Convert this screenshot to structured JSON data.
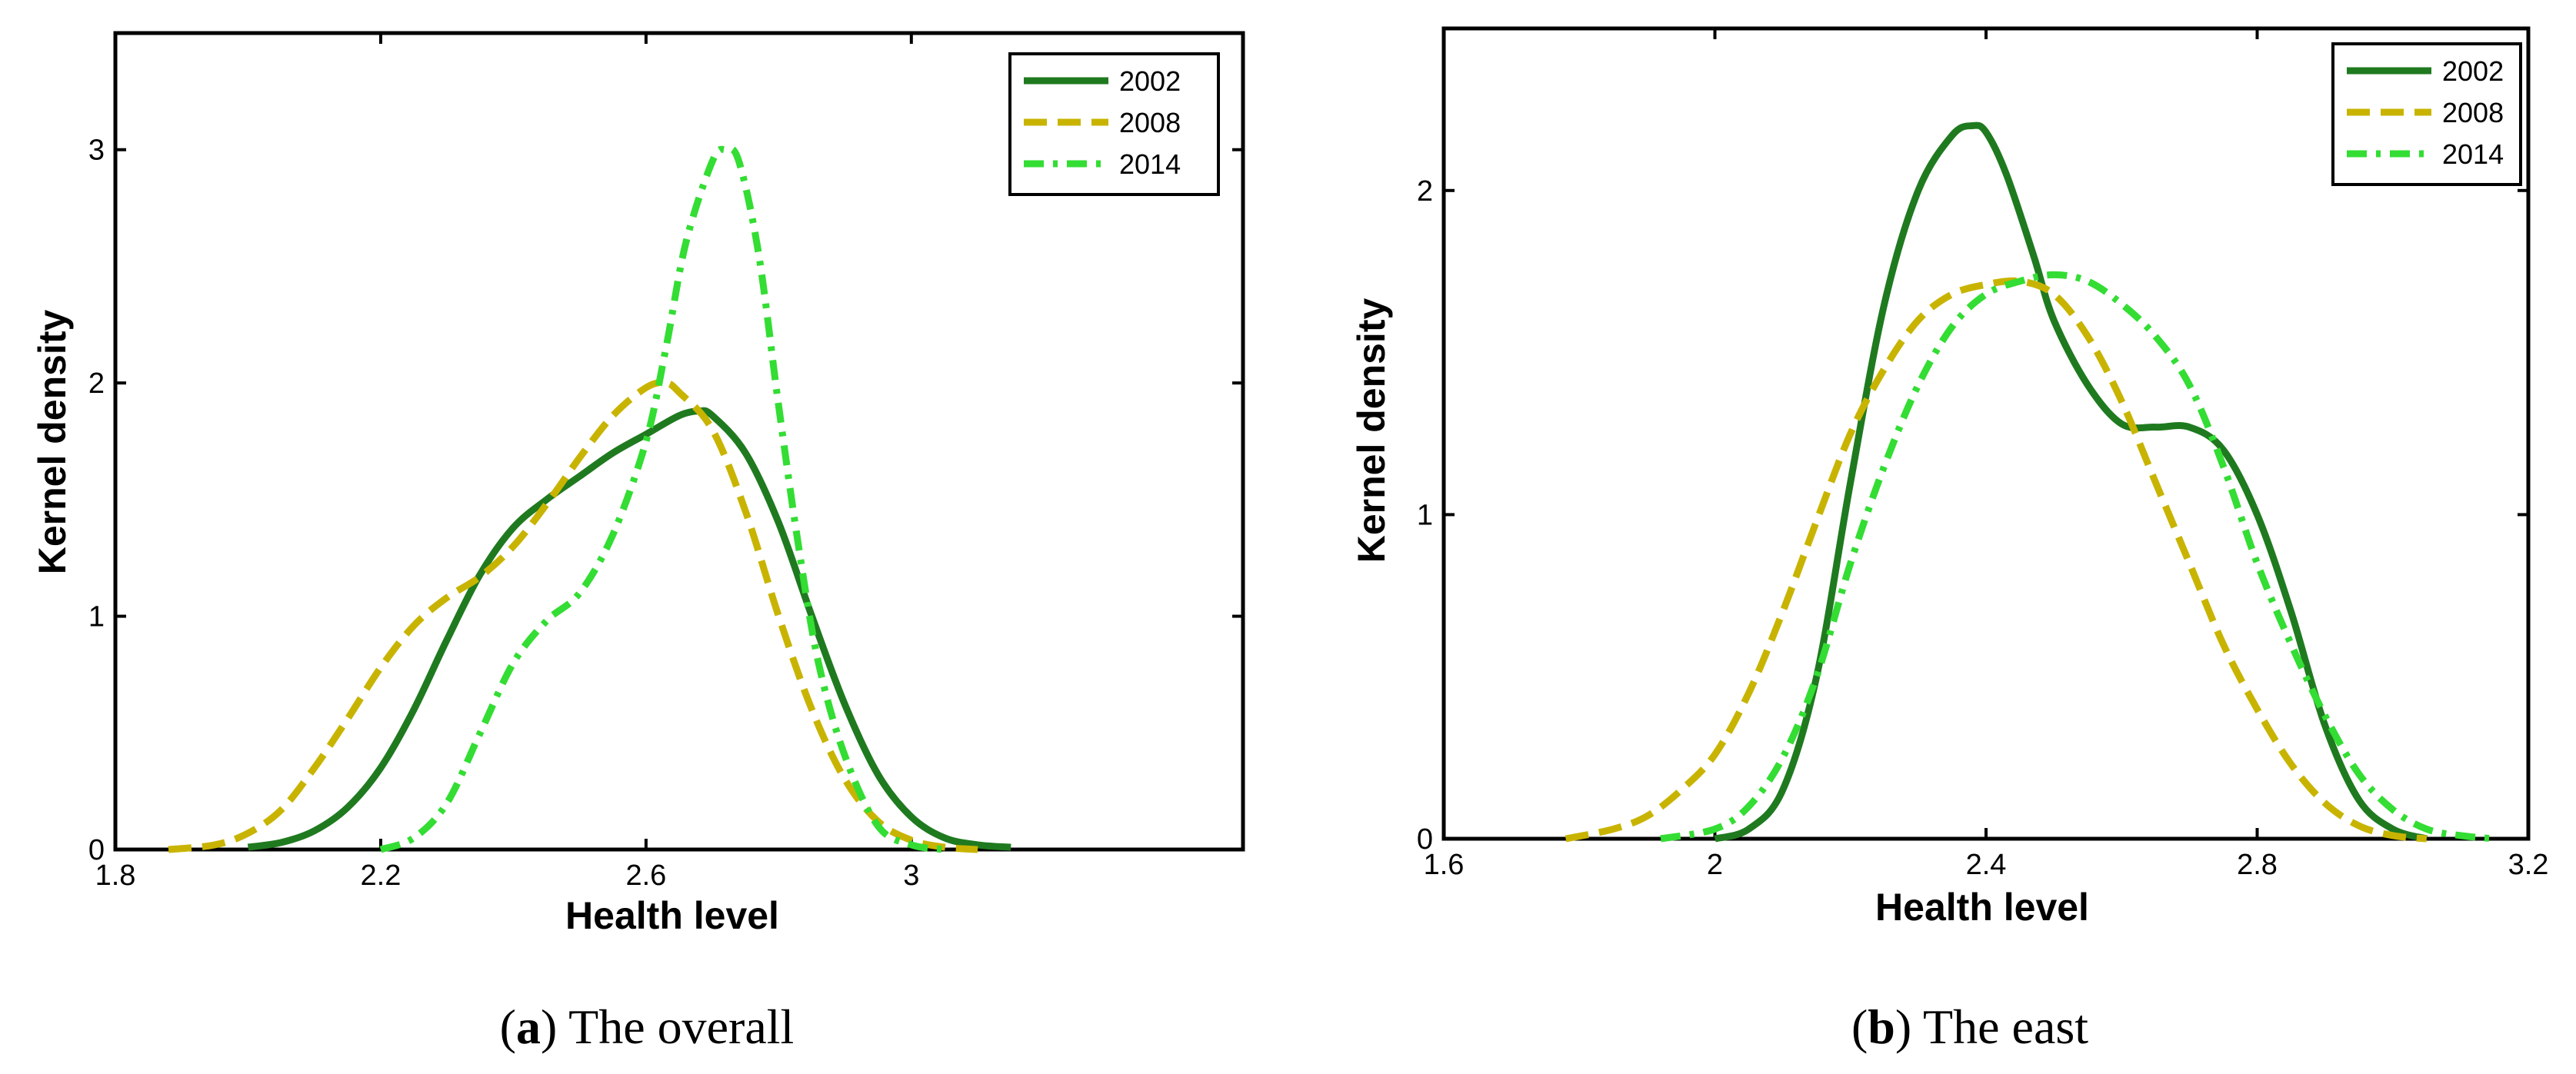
{
  "chart_data": [
    {
      "type": "line",
      "caption": {
        "letter": "a",
        "text": " The overall"
      },
      "title": "",
      "xlabel": "Health level",
      "ylabel": "Kernel density",
      "xlim": [
        1.8,
        3.5
      ],
      "ylim": [
        0,
        3.5
      ],
      "xticks": [
        1.8,
        2.2,
        2.6,
        3
      ],
      "xtick_labels": [
        "1.8",
        "2.2",
        "2.6",
        "3"
      ],
      "yticks": [
        0,
        1,
        2,
        3
      ],
      "ytick_labels": [
        "0",
        "1",
        "2",
        "3"
      ],
      "legend_position": "top-right",
      "series": [
        {
          "name": "2002",
          "color": "#1f7a1f",
          "style": "solid",
          "x": [
            2.0,
            2.05,
            2.1,
            2.15,
            2.2,
            2.25,
            2.3,
            2.35,
            2.4,
            2.45,
            2.5,
            2.55,
            2.6,
            2.65,
            2.68,
            2.7,
            2.75,
            2.8,
            2.85,
            2.9,
            2.95,
            3.0,
            3.05,
            3.1,
            3.15
          ],
          "y": [
            0.01,
            0.03,
            0.08,
            0.18,
            0.35,
            0.6,
            0.9,
            1.18,
            1.38,
            1.5,
            1.6,
            1.7,
            1.78,
            1.86,
            1.88,
            1.86,
            1.7,
            1.4,
            1.0,
            0.62,
            0.32,
            0.14,
            0.05,
            0.02,
            0.01
          ]
        },
        {
          "name": "2008",
          "color": "#c8b400",
          "style": "dashed",
          "x": [
            1.88,
            1.95,
            2.0,
            2.05,
            2.1,
            2.15,
            2.2,
            2.25,
            2.3,
            2.35,
            2.4,
            2.45,
            2.5,
            2.55,
            2.6,
            2.63,
            2.65,
            2.7,
            2.75,
            2.8,
            2.85,
            2.9,
            2.95,
            3.0,
            3.05,
            3.1
          ],
          "y": [
            0.0,
            0.02,
            0.07,
            0.17,
            0.35,
            0.56,
            0.78,
            0.96,
            1.08,
            1.17,
            1.3,
            1.48,
            1.68,
            1.86,
            1.98,
            2.0,
            1.96,
            1.8,
            1.45,
            1.0,
            0.6,
            0.3,
            0.12,
            0.04,
            0.01,
            0.0
          ]
        },
        {
          "name": "2014",
          "color": "#33dd33",
          "style": "dashdot",
          "x": [
            2.2,
            2.25,
            2.3,
            2.35,
            2.4,
            2.45,
            2.5,
            2.55,
            2.6,
            2.63,
            2.66,
            2.7,
            2.72,
            2.74,
            2.77,
            2.8,
            2.83,
            2.86,
            2.9,
            2.95,
            3.0,
            3.05
          ],
          "y": [
            0.0,
            0.05,
            0.2,
            0.5,
            0.8,
            0.98,
            1.1,
            1.35,
            1.75,
            2.15,
            2.6,
            2.95,
            3.0,
            2.95,
            2.55,
            1.9,
            1.3,
            0.8,
            0.4,
            0.1,
            0.02,
            0.0
          ]
        }
      ]
    },
    {
      "type": "line",
      "caption": {
        "letter": "b",
        "text": " The east"
      },
      "title": "",
      "xlabel": "Health level",
      "ylabel": "Kernel density",
      "xlim": [
        1.6,
        3.2
      ],
      "ylim": [
        0,
        2.5
      ],
      "xticks": [
        1.6,
        2,
        2.4,
        2.8,
        3.2
      ],
      "xtick_labels": [
        "1.6",
        "2",
        "2.4",
        "2.8",
        "3.2"
      ],
      "yticks": [
        0,
        1,
        2
      ],
      "ytick_labels": [
        "0",
        "1",
        "2"
      ],
      "legend_position": "top-right",
      "series": [
        {
          "name": "2002",
          "color": "#1f7a1f",
          "style": "solid",
          "x": [
            2.0,
            2.05,
            2.1,
            2.15,
            2.2,
            2.25,
            2.3,
            2.35,
            2.38,
            2.4,
            2.43,
            2.47,
            2.5,
            2.55,
            2.6,
            2.65,
            2.7,
            2.75,
            2.8,
            2.85,
            2.9,
            2.95,
            3.0,
            3.05
          ],
          "y": [
            0.0,
            0.03,
            0.15,
            0.5,
            1.1,
            1.65,
            2.0,
            2.17,
            2.2,
            2.18,
            2.05,
            1.8,
            1.6,
            1.4,
            1.28,
            1.27,
            1.27,
            1.2,
            1.0,
            0.7,
            0.35,
            0.12,
            0.03,
            0.0
          ]
        },
        {
          "name": "2008",
          "color": "#c8b400",
          "style": "dashed",
          "x": [
            1.78,
            1.85,
            1.9,
            1.95,
            2.0,
            2.05,
            2.1,
            2.15,
            2.2,
            2.25,
            2.3,
            2.35,
            2.4,
            2.45,
            2.5,
            2.55,
            2.6,
            2.65,
            2.7,
            2.75,
            2.8,
            2.85,
            2.9,
            2.95,
            3.0,
            3.05
          ],
          "y": [
            0.0,
            0.03,
            0.07,
            0.15,
            0.26,
            0.45,
            0.7,
            0.98,
            1.25,
            1.45,
            1.6,
            1.68,
            1.71,
            1.72,
            1.68,
            1.55,
            1.35,
            1.1,
            0.85,
            0.6,
            0.4,
            0.23,
            0.11,
            0.04,
            0.01,
            0.0
          ]
        },
        {
          "name": "2014",
          "color": "#33dd33",
          "style": "dashdot",
          "x": [
            1.92,
            2.0,
            2.05,
            2.1,
            2.15,
            2.2,
            2.25,
            2.3,
            2.35,
            2.4,
            2.45,
            2.5,
            2.55,
            2.6,
            2.65,
            2.7,
            2.75,
            2.8,
            2.85,
            2.9,
            2.95,
            3.0,
            3.05,
            3.1,
            3.15
          ],
          "y": [
            0.0,
            0.03,
            0.1,
            0.25,
            0.5,
            0.85,
            1.15,
            1.4,
            1.58,
            1.68,
            1.72,
            1.74,
            1.72,
            1.65,
            1.55,
            1.4,
            1.15,
            0.85,
            0.6,
            0.38,
            0.2,
            0.09,
            0.03,
            0.01,
            0.0
          ]
        }
      ]
    }
  ]
}
